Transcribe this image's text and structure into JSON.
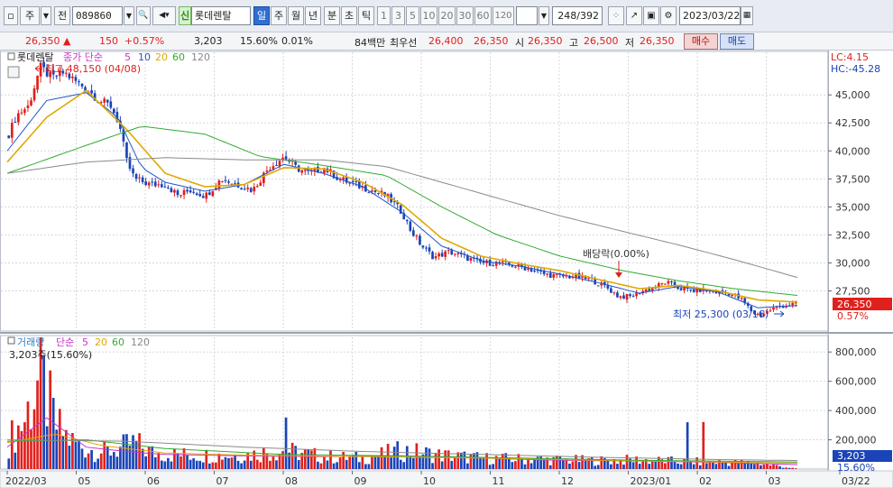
{
  "toolbar": {
    "period_label": "주",
    "prev_label": "전",
    "code_value": "089860",
    "badge_label": "신",
    "stock_name": "롯데렌탈",
    "period_tabs": [
      "일",
      "주",
      "월",
      "년",
      "분",
      "초",
      "틱"
    ],
    "active_tab": "일",
    "minute_options": [
      "1",
      "3",
      "5",
      "10",
      "20",
      "30",
      "60",
      "120"
    ],
    "count_label": "248/392",
    "date_value": "2023/03/22"
  },
  "quote": {
    "price": "26,350",
    "change_arrow": "▲",
    "change": "150",
    "change_pct": "+0.57%",
    "volume": "3,203",
    "volume_pct": "15.60%",
    "turnover": "0.01%",
    "amount": "84백만",
    "best_label": "최우선",
    "best_ask": "26,400",
    "best_bid": "26,350",
    "open_label": "시",
    "open": "26,350",
    "high_label": "고",
    "high": "26,500",
    "low_label": "저",
    "low": "26,350",
    "buy_label": "매수",
    "sell_label": "매도"
  },
  "legend": {
    "name": "롯데렌탈",
    "price_label": "종가 단순",
    "ma": [
      "5",
      "10",
      "20",
      "60",
      "120"
    ],
    "ma_colors": [
      "#cc33cc",
      "#2255cc",
      "#e0a800",
      "#33aa33",
      "#888888"
    ],
    "volume_label": "거래량",
    "volume_ma_label": "단순",
    "volume_info": "3,203주(15.60%)"
  },
  "annotations": {
    "high": "최고 48,150 (04/08)",
    "low": "최저 25,300 (03/16)",
    "dividend": "배당락(0.00%)",
    "lc": "LC:4.15",
    "hc": "HC:-45.28"
  },
  "chart_data": {
    "type": "candlestick",
    "price_axis": {
      "ticks": [
        "45,000",
        "42,500",
        "40,000",
        "37,500",
        "35,000",
        "32,500",
        "30,000",
        "27,500"
      ],
      "ylim": [
        24000,
        48800
      ],
      "last_price_tag": "26,350",
      "last_pct_tag": "0.57%"
    },
    "volume_axis": {
      "ticks": [
        "800,000",
        "600,000",
        "400,000",
        "200,000"
      ],
      "ylim": [
        0,
        900000
      ],
      "last_volume_tag": "3,203",
      "last_pct_tag": "15.60%"
    },
    "x_labels": [
      "2022/03",
      "05",
      "06",
      "07",
      "08",
      "09",
      "10",
      "11",
      "12",
      "2023/01",
      "02",
      "03",
      "03/22"
    ],
    "price_path": [
      [
        0,
        41500
      ],
      [
        0.01,
        43200
      ],
      [
        0.025,
        44000
      ],
      [
        0.04,
        47500
      ],
      [
        0.055,
        46500
      ],
      [
        0.07,
        47000
      ],
      [
        0.085,
        46200
      ],
      [
        0.1,
        45500
      ],
      [
        0.115,
        44500
      ],
      [
        0.13,
        44000
      ],
      [
        0.14,
        42500
      ],
      [
        0.15,
        39000
      ],
      [
        0.16,
        37500
      ],
      [
        0.18,
        37000
      ],
      [
        0.2,
        37000
      ],
      [
        0.215,
        36000
      ],
      [
        0.23,
        36500
      ],
      [
        0.25,
        36000
      ],
      [
        0.27,
        37500
      ],
      [
        0.29,
        37000
      ],
      [
        0.31,
        36500
      ],
      [
        0.33,
        38500
      ],
      [
        0.35,
        39500
      ],
      [
        0.365,
        38500
      ],
      [
        0.38,
        38000
      ],
      [
        0.4,
        38500
      ],
      [
        0.42,
        37500
      ],
      [
        0.44,
        37000
      ],
      [
        0.46,
        36500
      ],
      [
        0.48,
        36000
      ],
      [
        0.5,
        34500
      ],
      [
        0.51,
        33000
      ],
      [
        0.525,
        31500
      ],
      [
        0.54,
        30500
      ],
      [
        0.56,
        31000
      ],
      [
        0.58,
        30500
      ],
      [
        0.6,
        30000
      ],
      [
        0.62,
        30000
      ],
      [
        0.64,
        29800
      ],
      [
        0.66,
        29500
      ],
      [
        0.68,
        29000
      ],
      [
        0.7,
        28800
      ],
      [
        0.72,
        28800
      ],
      [
        0.74,
        28500
      ],
      [
        0.76,
        27800
      ],
      [
        0.775,
        27000
      ],
      [
        0.79,
        27000
      ],
      [
        0.805,
        27500
      ],
      [
        0.82,
        27800
      ],
      [
        0.835,
        28300
      ],
      [
        0.85,
        27800
      ],
      [
        0.865,
        27500
      ],
      [
        0.88,
        27600
      ],
      [
        0.9,
        27400
      ],
      [
        0.915,
        27300
      ],
      [
        0.93,
        26800
      ],
      [
        0.945,
        25600
      ],
      [
        0.955,
        25300
      ],
      [
        0.97,
        25900
      ],
      [
        0.985,
        26200
      ],
      [
        1.0,
        26350
      ]
    ],
    "moving_averages": [
      {
        "period": "10",
        "color": "#2255cc",
        "path": [
          [
            0,
            40000
          ],
          [
            0.05,
            44500
          ],
          [
            0.1,
            45200
          ],
          [
            0.14,
            43000
          ],
          [
            0.17,
            38500
          ],
          [
            0.2,
            37200
          ],
          [
            0.25,
            36400
          ],
          [
            0.3,
            37000
          ],
          [
            0.35,
            38800
          ],
          [
            0.4,
            38000
          ],
          [
            0.45,
            36800
          ],
          [
            0.5,
            34500
          ],
          [
            0.55,
            31500
          ],
          [
            0.6,
            30200
          ],
          [
            0.65,
            29700
          ],
          [
            0.7,
            29000
          ],
          [
            0.75,
            28200
          ],
          [
            0.8,
            27300
          ],
          [
            0.85,
            27900
          ],
          [
            0.9,
            27400
          ],
          [
            0.95,
            26000
          ],
          [
            1.0,
            26200
          ]
        ]
      },
      {
        "period": "20",
        "color": "#e0a800",
        "path": [
          [
            0,
            39000
          ],
          [
            0.05,
            43000
          ],
          [
            0.1,
            45400
          ],
          [
            0.15,
            42000
          ],
          [
            0.2,
            38000
          ],
          [
            0.25,
            36800
          ],
          [
            0.3,
            37000
          ],
          [
            0.35,
            38500
          ],
          [
            0.4,
            38400
          ],
          [
            0.45,
            37200
          ],
          [
            0.5,
            35200
          ],
          [
            0.55,
            32200
          ],
          [
            0.6,
            30600
          ],
          [
            0.65,
            29900
          ],
          [
            0.7,
            29300
          ],
          [
            0.75,
            28500
          ],
          [
            0.8,
            27700
          ],
          [
            0.85,
            28000
          ],
          [
            0.9,
            27500
          ],
          [
            0.95,
            26700
          ],
          [
            1.0,
            26500
          ]
        ]
      },
      {
        "period": "60",
        "color": "#33aa33",
        "path": [
          [
            0,
            38000
          ],
          [
            0.1,
            40500
          ],
          [
            0.17,
            42200
          ],
          [
            0.25,
            41500
          ],
          [
            0.32,
            39500
          ],
          [
            0.4,
            38700
          ],
          [
            0.48,
            37800
          ],
          [
            0.55,
            35000
          ],
          [
            0.62,
            32500
          ],
          [
            0.7,
            30600
          ],
          [
            0.78,
            29300
          ],
          [
            0.85,
            28400
          ],
          [
            0.92,
            27700
          ],
          [
            1.0,
            27100
          ]
        ]
      },
      {
        "period": "120",
        "color": "#8a8a8a",
        "path": [
          [
            0,
            38000
          ],
          [
            0.1,
            39000
          ],
          [
            0.2,
            39400
          ],
          [
            0.3,
            39200
          ],
          [
            0.4,
            39200
          ],
          [
            0.48,
            38600
          ],
          [
            0.55,
            37200
          ],
          [
            0.62,
            35800
          ],
          [
            0.7,
            34200
          ],
          [
            0.78,
            32800
          ],
          [
            0.85,
            31600
          ],
          [
            0.92,
            30300
          ],
          [
            1.0,
            28700
          ]
        ]
      }
    ],
    "volume_path": [
      [
        0,
        180000
      ],
      [
        0.02,
        320000
      ],
      [
        0.04,
        600000
      ],
      [
        0.06,
        280000
      ],
      [
        0.08,
        180000
      ],
      [
        0.1,
        130000
      ],
      [
        0.12,
        110000
      ],
      [
        0.14,
        130000
      ],
      [
        0.16,
        170000
      ],
      [
        0.18,
        110000
      ],
      [
        0.2,
        95000
      ],
      [
        0.25,
        90000
      ],
      [
        0.3,
        90000
      ],
      [
        0.35,
        120000
      ],
      [
        0.4,
        80000
      ],
      [
        0.45,
        70000
      ],
      [
        0.5,
        120000
      ],
      [
        0.55,
        90000
      ],
      [
        0.6,
        70000
      ],
      [
        0.65,
        65000
      ],
      [
        0.7,
        60000
      ],
      [
        0.75,
        55000
      ],
      [
        0.8,
        60000
      ],
      [
        0.85,
        50000
      ],
      [
        0.9,
        45000
      ],
      [
        0.95,
        40000
      ],
      [
        1.0,
        3203
      ]
    ],
    "volume_ma": [
      {
        "period": "5",
        "color": "#cc33cc",
        "path": [
          [
            0,
            150000
          ],
          [
            0.05,
            350000
          ],
          [
            0.1,
            150000
          ],
          [
            0.15,
            120000
          ],
          [
            0.2,
            100000
          ],
          [
            0.3,
            90000
          ],
          [
            0.4,
            85000
          ],
          [
            0.5,
            90000
          ],
          [
            0.6,
            75000
          ],
          [
            0.7,
            60000
          ],
          [
            0.8,
            55000
          ],
          [
            0.9,
            45000
          ],
          [
            1.0,
            30000
          ]
        ]
      },
      {
        "period": "20",
        "color": "#e0a800",
        "path": [
          [
            0,
            180000
          ],
          [
            0.06,
            240000
          ],
          [
            0.12,
            160000
          ],
          [
            0.2,
            110000
          ],
          [
            0.3,
            95000
          ],
          [
            0.45,
            85000
          ],
          [
            0.6,
            75000
          ],
          [
            0.75,
            60000
          ],
          [
            0.9,
            48000
          ],
          [
            1.0,
            40000
          ]
        ]
      },
      {
        "period": "60",
        "color": "#33aa33",
        "path": [
          [
            0,
            190000
          ],
          [
            0.1,
            200000
          ],
          [
            0.2,
            140000
          ],
          [
            0.35,
            100000
          ],
          [
            0.5,
            90000
          ],
          [
            0.65,
            75000
          ],
          [
            0.8,
            60000
          ],
          [
            1.0,
            48000
          ]
        ]
      },
      {
        "period": "120",
        "color": "#8a8a8a",
        "path": [
          [
            0,
            200000
          ],
          [
            0.15,
            190000
          ],
          [
            0.3,
            150000
          ],
          [
            0.45,
            120000
          ],
          [
            0.6,
            100000
          ],
          [
            0.75,
            80000
          ],
          [
            0.9,
            65000
          ],
          [
            1.0,
            58000
          ]
        ]
      }
    ]
  }
}
